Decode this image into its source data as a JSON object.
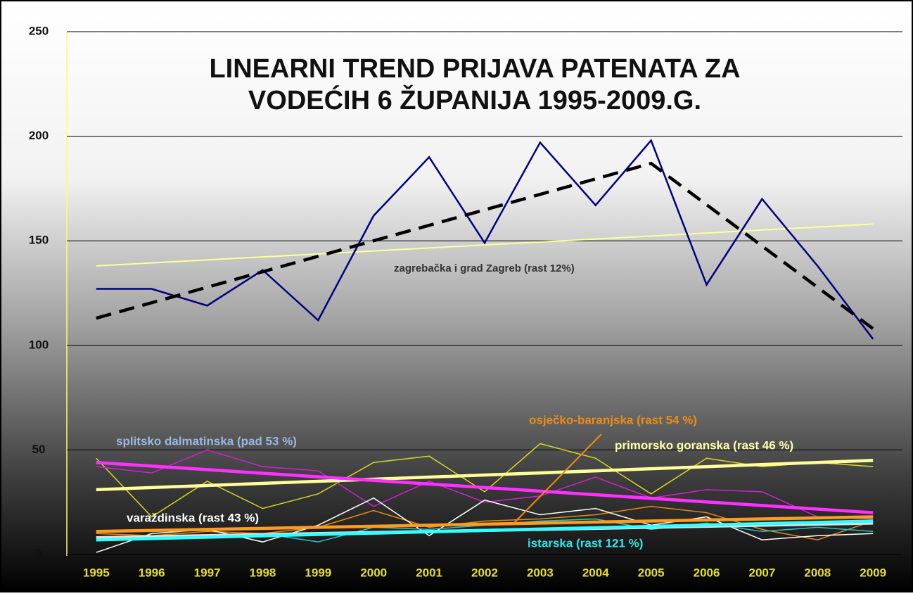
{
  "chart_data": {
    "type": "line",
    "title": [
      "LINEARNI TREND PRIJAVA PATENATA ZA",
      "VODEĆIH  6 ŽUPANIJA 1995-2009.G."
    ],
    "x": [
      1995,
      1996,
      1997,
      1998,
      1999,
      2000,
      2001,
      2002,
      2003,
      2004,
      2005,
      2006,
      2007,
      2008,
      2009
    ],
    "xlim": [
      1994.47,
      2009.53
    ],
    "ylim": [
      0,
      250
    ],
    "yticks": [
      0,
      50,
      100,
      150,
      200,
      250
    ],
    "grid": true,
    "series": [
      {
        "color": "#d8d820",
        "values": [
          46,
          18,
          35,
          22,
          29,
          44,
          47,
          30,
          53,
          46,
          29,
          46,
          42,
          44,
          42
        ]
      },
      {
        "color": "#d020d0",
        "values": [
          42,
          39,
          50,
          42,
          40,
          23,
          35,
          25,
          28,
          37,
          27,
          31,
          30,
          18,
          17
        ]
      },
      {
        "color": "#e88a10",
        "values": [
          10,
          9,
          11,
          10,
          13,
          21,
          13,
          16,
          17,
          19,
          23,
          20,
          12,
          7,
          16
        ]
      },
      {
        "color": "#ffffff",
        "values": [
          1,
          10,
          12,
          6,
          14,
          27,
          9,
          26,
          19,
          22,
          14,
          18,
          7,
          9,
          10
        ]
      },
      {
        "color": "#20c8c8",
        "values": [
          8,
          8,
          8,
          10,
          6,
          13,
          12,
          14,
          16,
          17,
          12,
          15,
          11,
          13,
          11
        ]
      },
      {
        "color": "#ffff99",
        "x": [
          1995,
          2009
        ],
        "values": [
          138,
          158
        ]
      },
      {
        "color": "#ffff99",
        "x": [
          1995,
          2009
        ],
        "values": [
          31,
          45
        ]
      },
      {
        "color": "#ff30ff",
        "x": [
          1995,
          2009
        ],
        "values": [
          44,
          20
        ]
      },
      {
        "color": "#e0e0e0",
        "x": [
          1995,
          2009
        ],
        "values": [
          8,
          15
        ]
      },
      {
        "color": "#ff9a20",
        "x": [
          1995,
          2009
        ],
        "values": [
          11,
          18
        ]
      },
      {
        "color": "#30ffff",
        "x": [
          1995,
          2009
        ],
        "values": [
          7,
          16
        ]
      },
      {
        "color": "#000080",
        "values": [
          127,
          127,
          119,
          136,
          112,
          162,
          190,
          149,
          197,
          167,
          198,
          129,
          170,
          138,
          103
        ]
      },
      {
        "color": "#000000",
        "dashed": true,
        "x": [
          1995,
          2005,
          2009
        ],
        "values": [
          113,
          187,
          108
        ]
      }
    ],
    "annotations": [
      {
        "text": "zagrebačka i grad Zagreb (rast 12%)",
        "color": "#333333"
      },
      {
        "text": "osječko-baranjska (rast 54 %)",
        "color": "#f08c10"
      },
      {
        "text": "splitsko dalmatinska (pad 53 %)",
        "color": "#9ab8e0"
      },
      {
        "text": "primorsko goranska (rast 46 %)",
        "color": "#ffffaa"
      },
      {
        "text": "varaždinska (rast 43 %)",
        "color": "#ffffff"
      },
      {
        "text": "istarska (rast 121 %)",
        "color": "#30e8e8"
      }
    ]
  }
}
